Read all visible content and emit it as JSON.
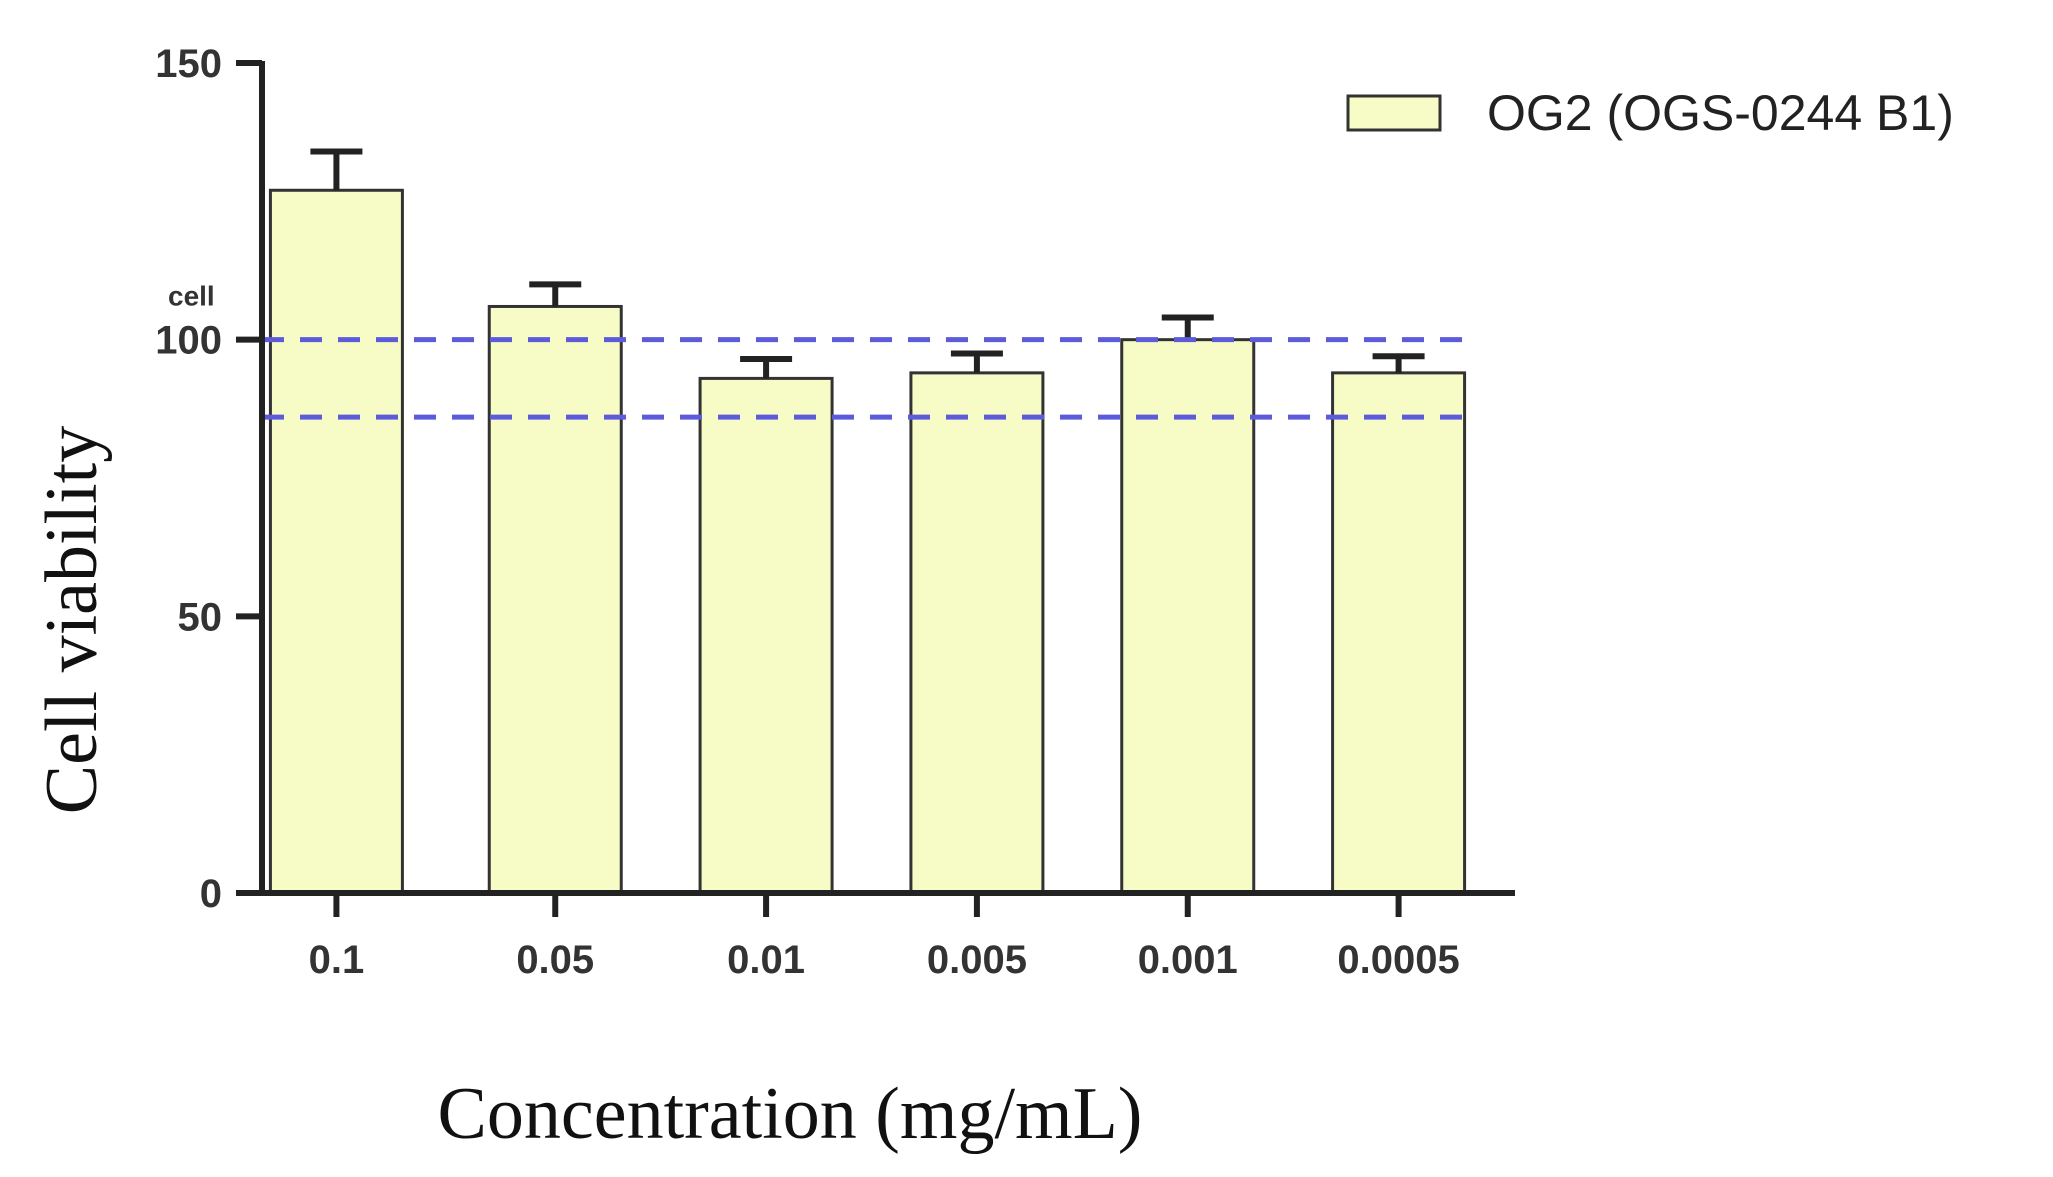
{
  "chart_data": {
    "type": "bar",
    "categories": [
      "0.1",
      "0.05",
      "0.01",
      "0.005",
      "0.001",
      "0.0005"
    ],
    "series": [
      {
        "name": "OG2 (OGS-0244 B1)",
        "values": [
          127,
          106,
          93,
          94,
          100,
          94
        ],
        "errors": [
          7,
          4,
          3.5,
          3.5,
          4,
          3
        ],
        "color": "#f7fcc6"
      }
    ],
    "xlabel": "Concentration (mg/mL)",
    "ylabel": "Cell viability",
    "ylim": [
      0,
      150
    ],
    "yticks": [
      0,
      50,
      100,
      150
    ],
    "reference_lines": [
      100,
      86
    ],
    "reference_line_color": "#5b5bdc",
    "annotation": "cell",
    "annotation_value": 108,
    "legend_position": "top-right",
    "grid": false
  }
}
